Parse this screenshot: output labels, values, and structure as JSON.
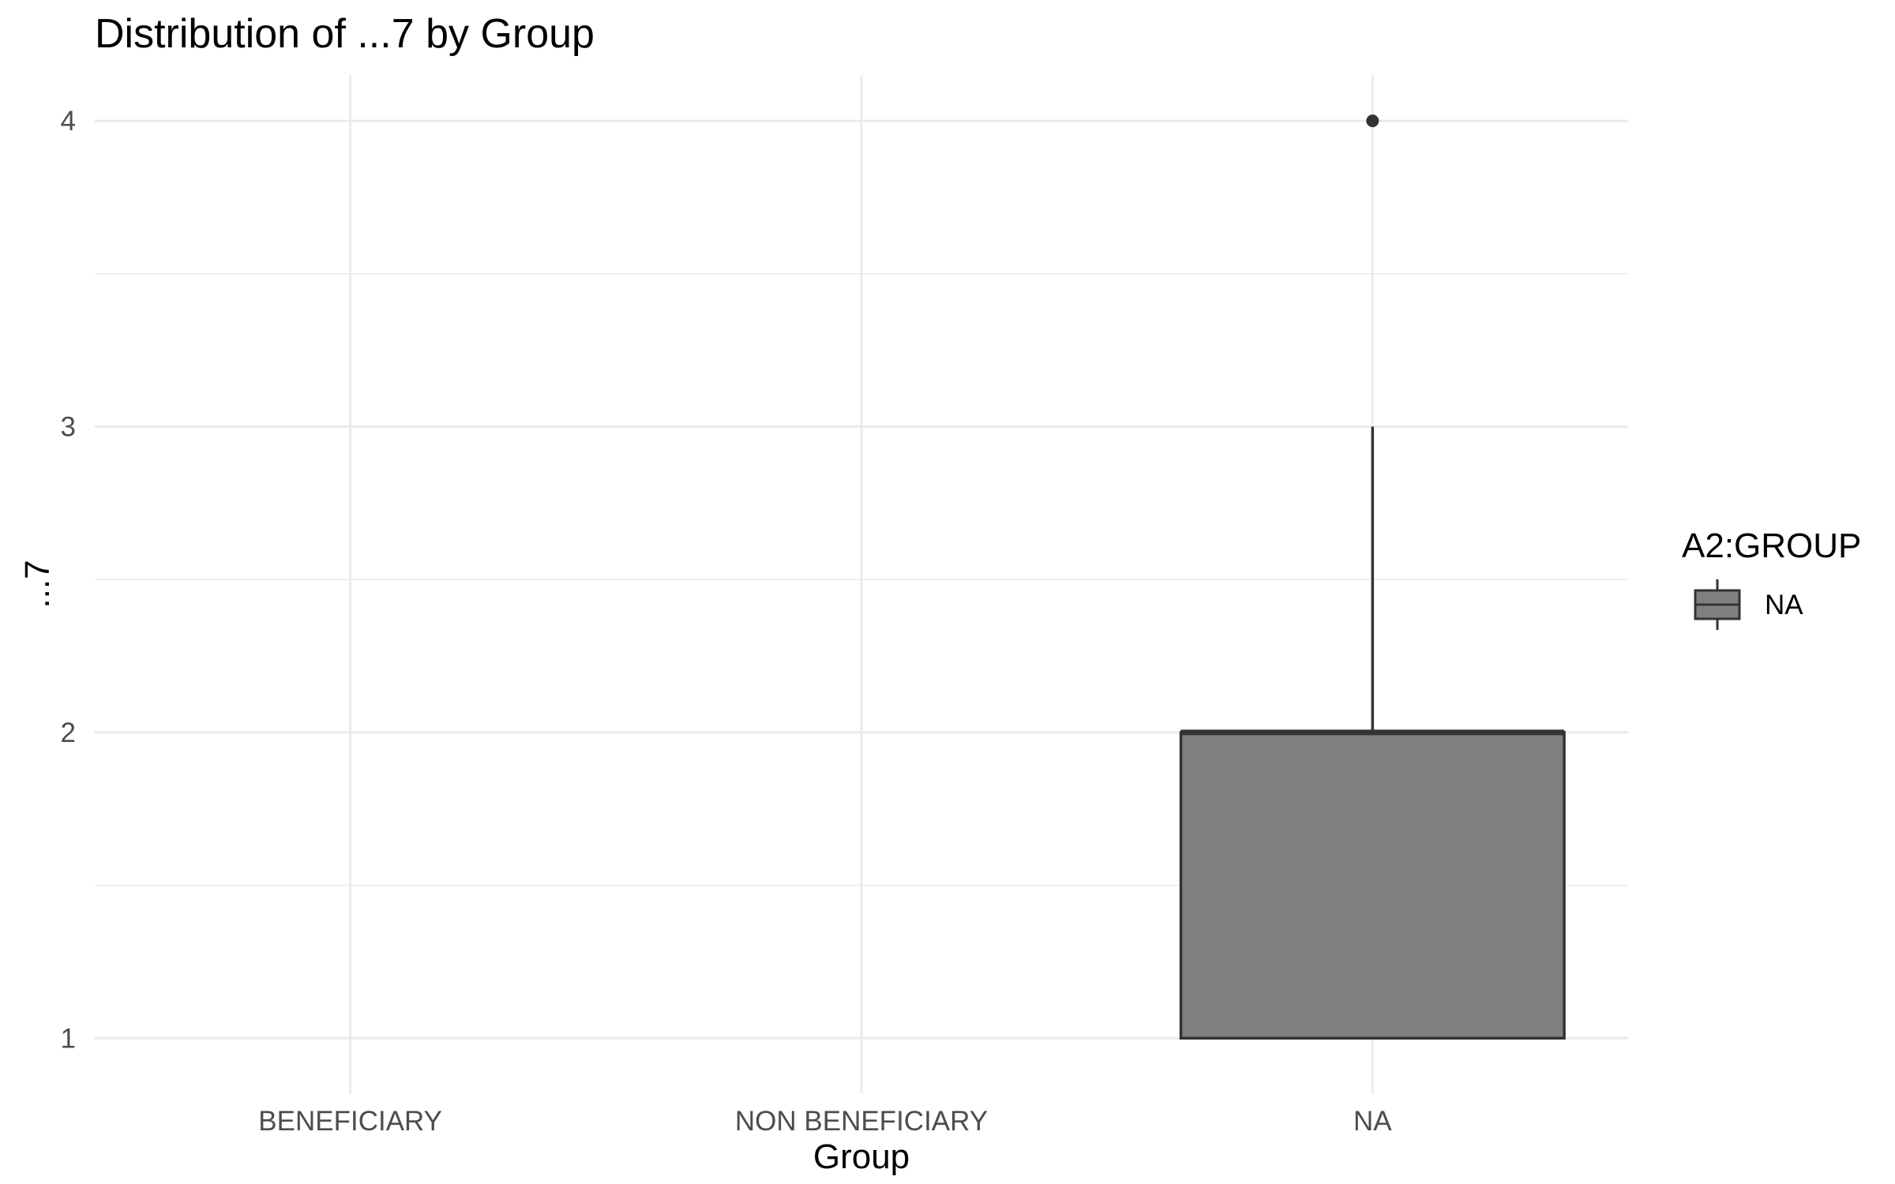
{
  "chart_data": {
    "type": "boxplot",
    "title": "Distribution of ...7 by Group",
    "xlabel": "Group",
    "ylabel": "...7",
    "categories": [
      "BENEFICIARY",
      "NON BENEFICIARY",
      "NA"
    ],
    "ylim": [
      0.82,
      4.15
    ],
    "yticks": [
      1,
      2,
      3,
      4
    ],
    "grid": true,
    "legend": {
      "title": "A2:GROUP",
      "placement": "right",
      "entries": [
        {
          "label": "NA",
          "color": "#808080"
        }
      ]
    },
    "series": [
      {
        "name": "NA",
        "category": "NA",
        "color": "#808080",
        "min": 1,
        "q1": 1,
        "median": 2,
        "q3": 2,
        "max": 3,
        "outliers": [
          4
        ]
      }
    ]
  }
}
